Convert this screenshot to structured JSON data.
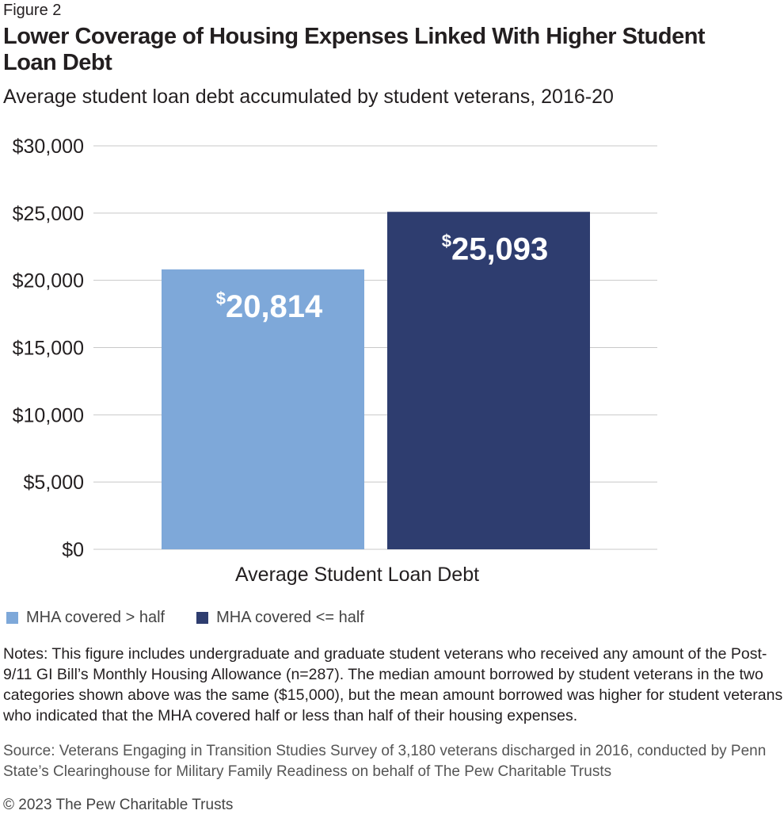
{
  "figure_label": "Figure 2",
  "colors": {
    "series1": "#7ea8d9",
    "series2": "#2e3d6f",
    "grid": "#c8c8c8"
  },
  "chart_data": {
    "type": "bar",
    "title": "Lower Coverage of Housing Expenses Linked With Higher Student Loan Debt",
    "subtitle": "Average student loan debt accumulated by student veterans, 2016-20",
    "categories": [
      "Average Student Loan Debt"
    ],
    "series": [
      {
        "name": "MHA covered > half",
        "values": [
          20814
        ],
        "label": "20,814"
      },
      {
        "name": "MHA covered <= half",
        "values": [
          25093
        ],
        "label": "25,093"
      }
    ],
    "ylim": [
      0,
      30000
    ],
    "yticks": [
      0,
      5000,
      10000,
      15000,
      20000,
      25000,
      30000
    ],
    "ytick_labels": [
      "$0",
      "$5,000",
      "$10,000",
      "$15,000",
      "$20,000",
      "$25,000",
      "$30,000"
    ],
    "currency_symbol": "$",
    "grid": true,
    "legend_placement": "bottom-left"
  },
  "notes": "Notes: This figure includes undergraduate and graduate student veterans who received any amount of the Post-9/11 GI Bill’s Monthly Housing Allowance (n=287). The median amount borrowed by student veterans in the two categories shown above was the same ($15,000), but the mean amount borrowed was higher for student veterans who indicated that the MHA covered half or less than half of their housing expenses.",
  "source": "Source: Veterans Engaging in Transition Studies Survey of 3,180 veterans discharged in 2016, conducted by Penn State’s Clearinghouse for Military Family Readiness on behalf of The Pew Charitable Trusts",
  "copyright": "© 2023 The Pew Charitable Trusts"
}
